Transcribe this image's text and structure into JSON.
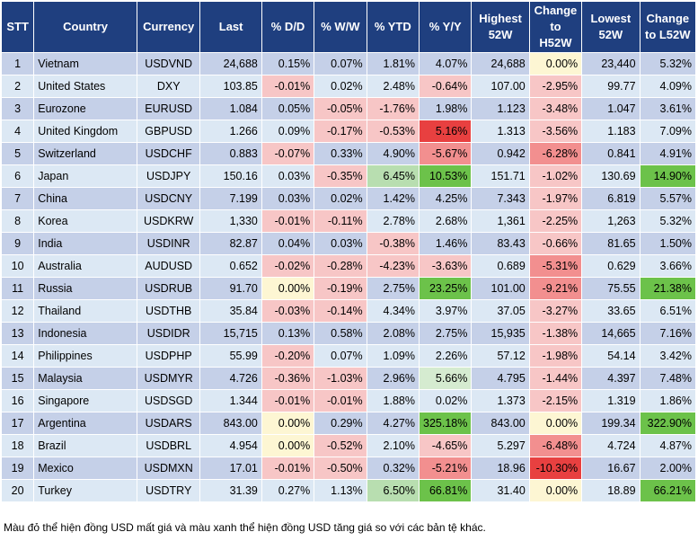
{
  "headers": [
    "STT",
    "Country",
    "Currency",
    "Last",
    "% D/D",
    "% W/W",
    "% YTD",
    "% Y/Y",
    "Highest 52W",
    "Change to H52W",
    "Lowest 52W",
    "Change to L52W"
  ],
  "rows": [
    [
      "1",
      "Vietnam",
      "USDVND",
      "24,688",
      "0.15%",
      "0.07%",
      "1.81%",
      "4.07%",
      "24,688",
      "0.00%",
      "23,440",
      "5.32%"
    ],
    [
      "2",
      "United States",
      "DXY",
      "103.85",
      "-0.01%",
      "0.02%",
      "2.48%",
      "-0.64%",
      "107.00",
      "-2.95%",
      "99.77",
      "4.09%"
    ],
    [
      "3",
      "Eurozone",
      "EURUSD",
      "1.084",
      "0.05%",
      "-0.05%",
      "-1.76%",
      "1.98%",
      "1.123",
      "-3.48%",
      "1.047",
      "3.61%"
    ],
    [
      "4",
      "United Kingdom",
      "GBPUSD",
      "1.266",
      "0.09%",
      "-0.17%",
      "-0.53%",
      "5.16%",
      "1.313",
      "-3.56%",
      "1.183",
      "7.09%"
    ],
    [
      "5",
      "Switzerland",
      "USDCHF",
      "0.883",
      "-0.07%",
      "0.33%",
      "4.90%",
      "-5.67%",
      "0.942",
      "-6.28%",
      "0.841",
      "4.91%"
    ],
    [
      "6",
      "Japan",
      "USDJPY",
      "150.16",
      "0.03%",
      "-0.35%",
      "6.45%",
      "10.53%",
      "151.71",
      "-1.02%",
      "130.69",
      "14.90%"
    ],
    [
      "7",
      "China",
      "USDCNY",
      "7.199",
      "0.03%",
      "0.02%",
      "1.42%",
      "4.25%",
      "7.343",
      "-1.97%",
      "6.819",
      "5.57%"
    ],
    [
      "8",
      "Korea",
      "USDKRW",
      "1,330",
      "-0.01%",
      "-0.11%",
      "2.78%",
      "2.68%",
      "1,361",
      "-2.25%",
      "1,263",
      "5.32%"
    ],
    [
      "9",
      "India",
      "USDINR",
      "82.87",
      "0.04%",
      "0.03%",
      "-0.38%",
      "1.46%",
      "83.43",
      "-0.66%",
      "81.65",
      "1.50%"
    ],
    [
      "10",
      "Australia",
      "AUDUSD",
      "0.652",
      "-0.02%",
      "-0.28%",
      "-4.23%",
      "-3.63%",
      "0.689",
      "-5.31%",
      "0.629",
      "3.66%"
    ],
    [
      "11",
      "Russia",
      "USDRUB",
      "91.70",
      "0.00%",
      "-0.19%",
      "2.75%",
      "23.25%",
      "101.00",
      "-9.21%",
      "75.55",
      "21.38%"
    ],
    [
      "12",
      "Thailand",
      "USDTHB",
      "35.84",
      "-0.03%",
      "-0.14%",
      "4.34%",
      "3.97%",
      "37.05",
      "-3.27%",
      "33.65",
      "6.51%"
    ],
    [
      "13",
      "Indonesia",
      "USDIDR",
      "15,715",
      "0.13%",
      "0.58%",
      "2.08%",
      "2.75%",
      "15,935",
      "-1.38%",
      "14,665",
      "7.16%"
    ],
    [
      "14",
      "Philippines",
      "USDPHP",
      "55.99",
      "-0.20%",
      "0.07%",
      "1.09%",
      "2.26%",
      "57.12",
      "-1.98%",
      "54.14",
      "3.42%"
    ],
    [
      "15",
      "Malaysia",
      "USDMYR",
      "4.726",
      "-0.36%",
      "-1.03%",
      "2.96%",
      "5.66%",
      "4.795",
      "-1.44%",
      "4.397",
      "7.48%"
    ],
    [
      "16",
      "Singapore",
      "USDSGD",
      "1.344",
      "-0.01%",
      "-0.01%",
      "1.88%",
      "0.02%",
      "1.373",
      "-2.15%",
      "1.319",
      "1.86%"
    ],
    [
      "17",
      "Argentina",
      "USDARS",
      "843.00",
      "0.00%",
      "0.29%",
      "4.27%",
      "325.18%",
      "843.00",
      "0.00%",
      "199.34",
      "322.90%"
    ],
    [
      "18",
      "Brazil",
      "USDBRL",
      "4.954",
      "0.00%",
      "-0.52%",
      "2.10%",
      "-4.65%",
      "5.297",
      "-6.48%",
      "4.724",
      "4.87%"
    ],
    [
      "19",
      "Mexico",
      "USDMXN",
      "17.01",
      "-0.01%",
      "-0.50%",
      "0.32%",
      "-5.21%",
      "18.96",
      "-10.30%",
      "16.67",
      "2.00%"
    ],
    [
      "20",
      "Turkey",
      "USDTRY",
      "31.39",
      "0.27%",
      "1.13%",
      "6.50%",
      "66.81%",
      "31.40",
      "0.00%",
      "18.89",
      "66.21%"
    ]
  ],
  "cell_colors": [
    [
      null,
      null,
      null,
      null,
      null,
      null,
      null,
      null,
      null,
      "z",
      null,
      null
    ],
    [
      null,
      null,
      null,
      null,
      "n1",
      null,
      null,
      "n1",
      null,
      "n1",
      null,
      null
    ],
    [
      null,
      null,
      null,
      null,
      null,
      "n1",
      "n1",
      null,
      null,
      "n1",
      null,
      null
    ],
    [
      null,
      null,
      null,
      null,
      null,
      "n1",
      "n1",
      "n3",
      null,
      "n1",
      null,
      null
    ],
    [
      null,
      null,
      null,
      null,
      "n1",
      null,
      null,
      "n2",
      null,
      "n2",
      null,
      null
    ],
    [
      null,
      null,
      null,
      null,
      null,
      "n1",
      "p2",
      "p3",
      null,
      "n1",
      null,
      "p3"
    ],
    [
      null,
      null,
      null,
      null,
      null,
      null,
      null,
      null,
      null,
      "n1",
      null,
      null
    ],
    [
      null,
      null,
      null,
      null,
      "n1",
      "n1",
      null,
      null,
      null,
      "n1",
      null,
      null
    ],
    [
      null,
      null,
      null,
      null,
      null,
      null,
      "n1",
      null,
      null,
      "n1",
      null,
      null
    ],
    [
      null,
      null,
      null,
      null,
      "n1",
      "n1",
      "n1",
      "n1",
      null,
      "n2",
      null,
      null
    ],
    [
      null,
      null,
      null,
      null,
      "z",
      "n1",
      null,
      "p3",
      null,
      "n2",
      null,
      "p3"
    ],
    [
      null,
      null,
      null,
      null,
      "n1",
      "n1",
      null,
      null,
      null,
      "n1",
      null,
      null
    ],
    [
      null,
      null,
      null,
      null,
      null,
      null,
      null,
      null,
      null,
      "n1",
      null,
      null
    ],
    [
      null,
      null,
      null,
      null,
      "n1",
      null,
      null,
      null,
      null,
      "n1",
      null,
      null
    ],
    [
      null,
      null,
      null,
      null,
      "n1",
      "n1",
      null,
      "p1",
      null,
      "n1",
      null,
      null
    ],
    [
      null,
      null,
      null,
      null,
      "n1",
      "n1",
      null,
      null,
      null,
      "n1",
      null,
      null
    ],
    [
      null,
      null,
      null,
      null,
      "z",
      null,
      null,
      "p3",
      null,
      "z",
      null,
      "p3"
    ],
    [
      null,
      null,
      null,
      null,
      "z",
      "n1",
      null,
      "n1",
      null,
      "n2",
      null,
      null
    ],
    [
      null,
      null,
      null,
      null,
      "n1",
      "n1",
      null,
      "n2",
      null,
      "n3",
      null,
      null
    ],
    [
      null,
      null,
      null,
      null,
      null,
      null,
      "p2",
      "p3",
      null,
      "z",
      null,
      "p3"
    ]
  ],
  "note": "Màu đỏ thể hiện đồng USD mất giá và màu xanh thể hiện đồng USD tăng giá so với các bản tệ khác."
}
